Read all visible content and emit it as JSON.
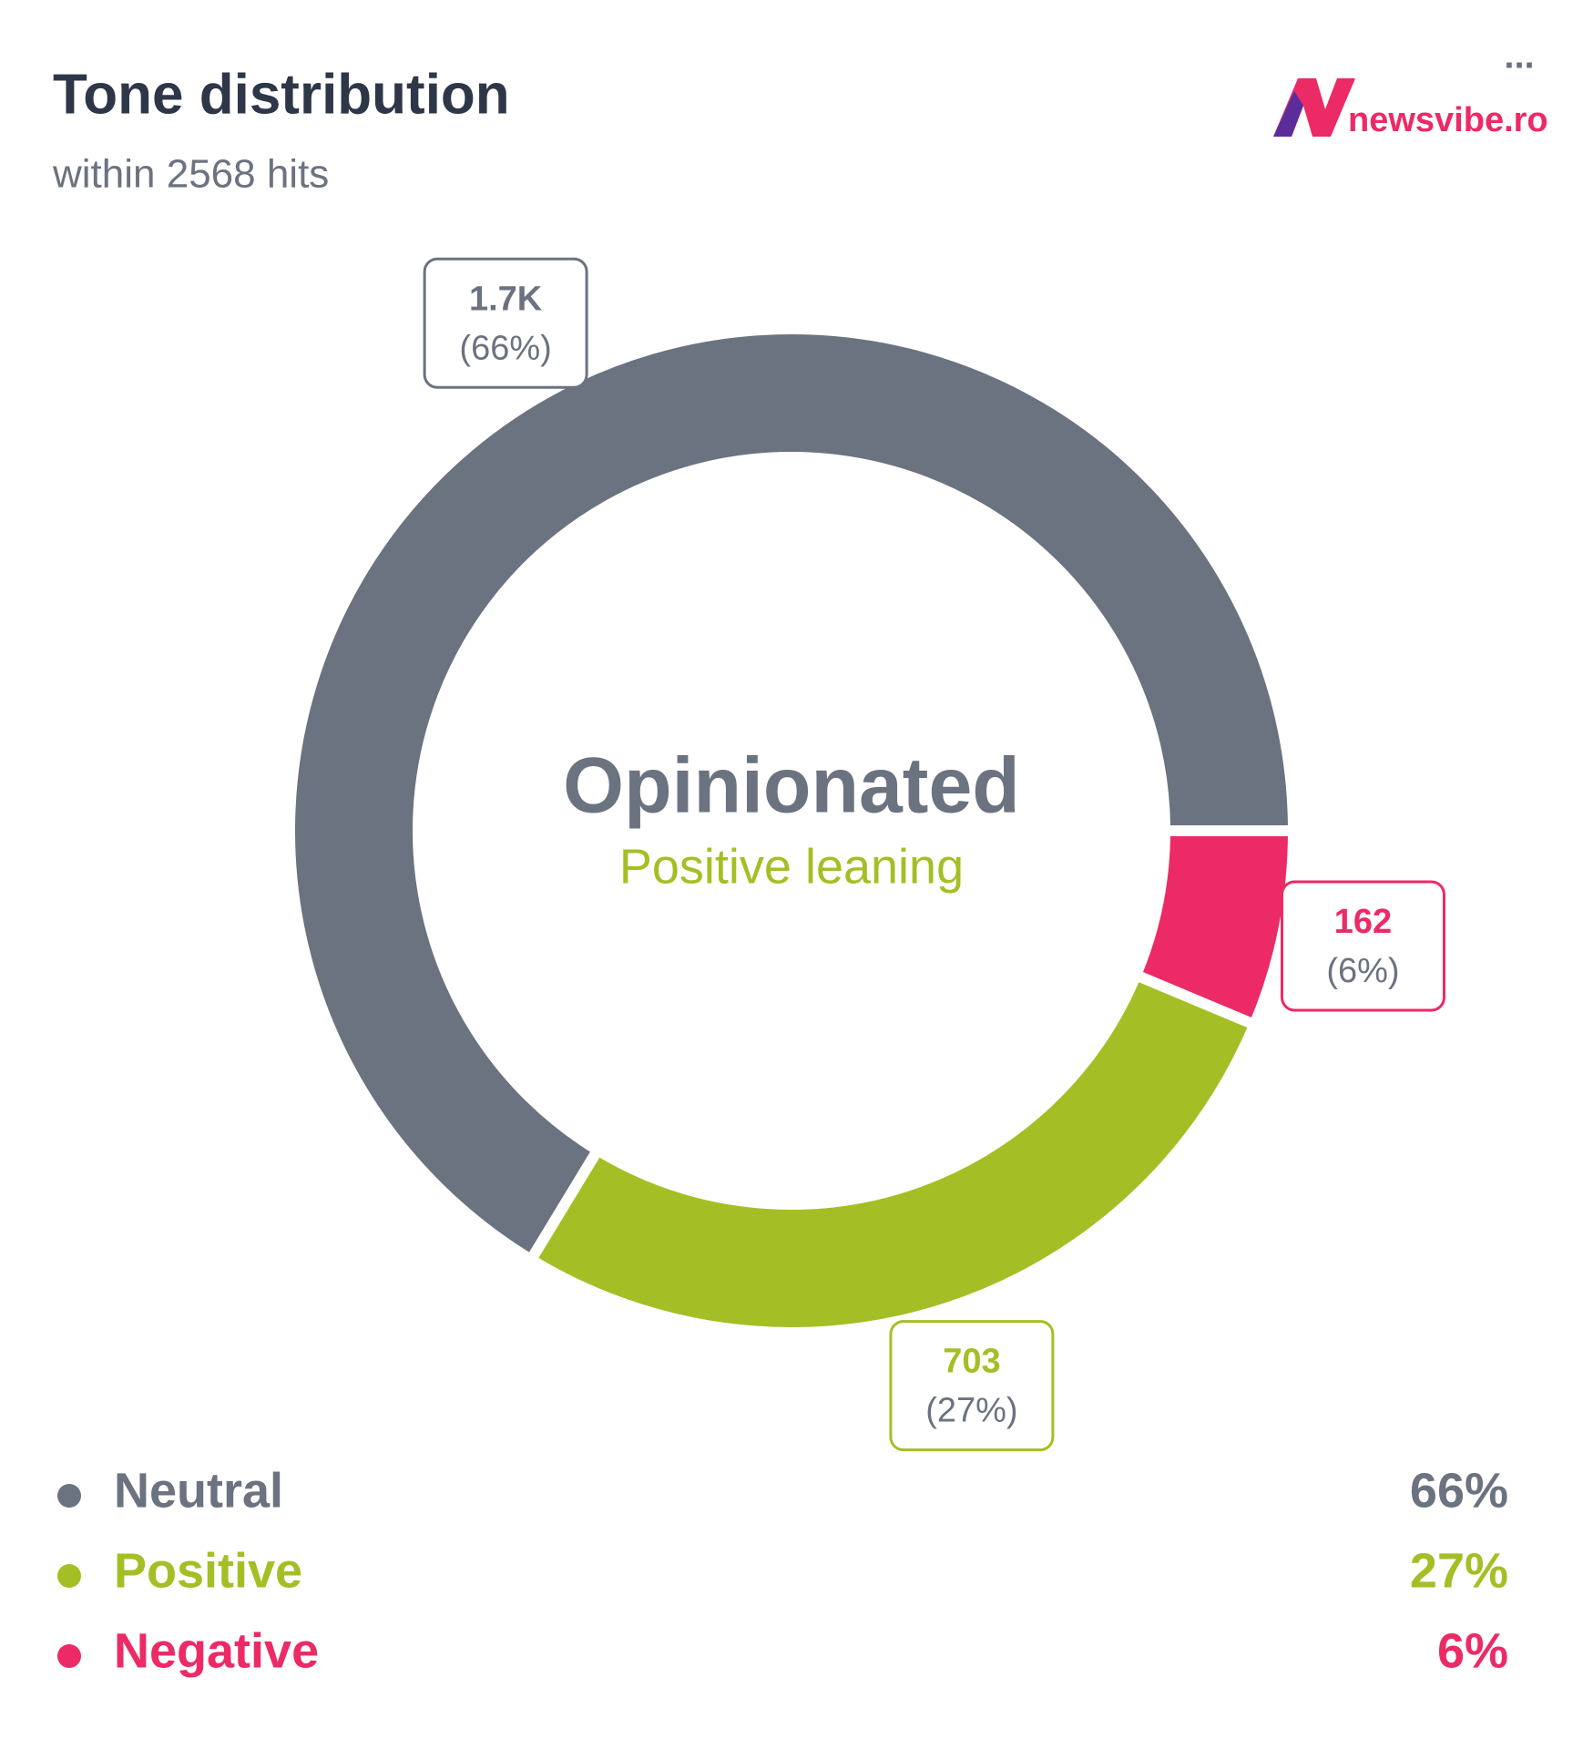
{
  "chart_data": {
    "type": "donut",
    "title": "Tone distribution",
    "subtitle": "within 2568 hits",
    "brand": "newsvibe.ro",
    "menu": "...",
    "center_title": "Opinionated",
    "center_subtitle": "Positive leaning",
    "categories": [
      "Neutral",
      "Positive",
      "Negative"
    ],
    "values": [
      1703,
      703,
      162
    ],
    "value_labels": [
      "1.7K",
      "703",
      "162"
    ],
    "colors": [
      "#6b7280",
      "#a4bf25",
      "#ec2a66"
    ],
    "percents": [
      66,
      27,
      6
    ],
    "percent_labels": [
      "66%",
      "27%",
      "6%"
    ],
    "percent_box_labels": [
      "(66%)",
      "(27%)",
      "(6%)"
    ]
  }
}
